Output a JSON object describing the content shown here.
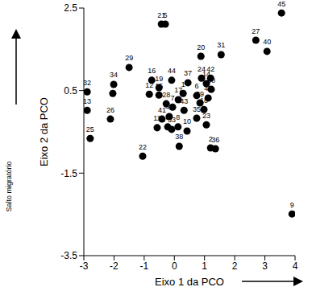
{
  "chart_data": {
    "type": "scatter",
    "x_label": "Eixo 1 da PCO",
    "y_label": "Eixo 2 da PCO",
    "annotation": "Salto migratório",
    "color": "#000000",
    "marker": "circle",
    "grid": false,
    "xlim": [
      -3,
      4
    ],
    "xticks": [
      -3,
      -2,
      -1,
      0,
      1,
      2,
      3,
      4
    ],
    "ylim": [
      -3.5,
      2.5
    ],
    "yticks": [
      -3.5,
      -1.5,
      0.5,
      2.5
    ],
    "labels": [
      "21",
      "5",
      "45",
      "27",
      "40",
      "20",
      "31",
      "29",
      "16",
      "44",
      "24",
      "42",
      "37",
      "14",
      "34",
      "32",
      "19",
      "1",
      "30",
      "12",
      "15",
      "4",
      "6",
      "47",
      "17",
      "28",
      "39",
      "7",
      "43",
      "18",
      "13",
      "26",
      "41",
      "46",
      "35",
      "23",
      "11",
      "3",
      "8",
      "33",
      "10",
      "25",
      "38",
      "2",
      "36",
      "22",
      "9"
    ],
    "x": [
      -0.43,
      -0.3,
      3.55,
      2.7,
      3.07,
      0.88,
      1.55,
      -1.5,
      -0.75,
      -0.09,
      0.9,
      1.2,
      0.45,
      1.06,
      -2.01,
      -2.89,
      -0.51,
      0.29,
      1.22,
      -0.83,
      -0.51,
      -2.04,
      0.74,
      1.12,
      0.13,
      -0.27,
      0.85,
      -0.06,
      0.32,
      0.98,
      -2.89,
      -2.12,
      -0.41,
      -0.17,
      0.74,
      1.06,
      -0.57,
      -0.22,
      0.12,
      -0.09,
      0.42,
      -2.79,
      0.16,
      1.2,
      1.36,
      -1.05,
      3.9
    ],
    "y": [
      2.11,
      2.11,
      2.38,
      1.72,
      1.45,
      1.33,
      1.37,
      1.06,
      0.75,
      0.75,
      0.8,
      0.8,
      0.69,
      0.67,
      0.65,
      0.47,
      0.57,
      0.43,
      0.53,
      0.41,
      0.39,
      0.43,
      0.38,
      0.32,
      0.28,
      0.18,
      0.2,
      0.1,
      0.02,
      0.04,
      0.02,
      -0.19,
      -0.19,
      -0.13,
      -0.17,
      -0.33,
      -0.4,
      -0.38,
      -0.38,
      -0.44,
      -0.48,
      -0.66,
      -0.85,
      -0.89,
      -0.91,
      -1.09,
      -2.49
    ]
  }
}
